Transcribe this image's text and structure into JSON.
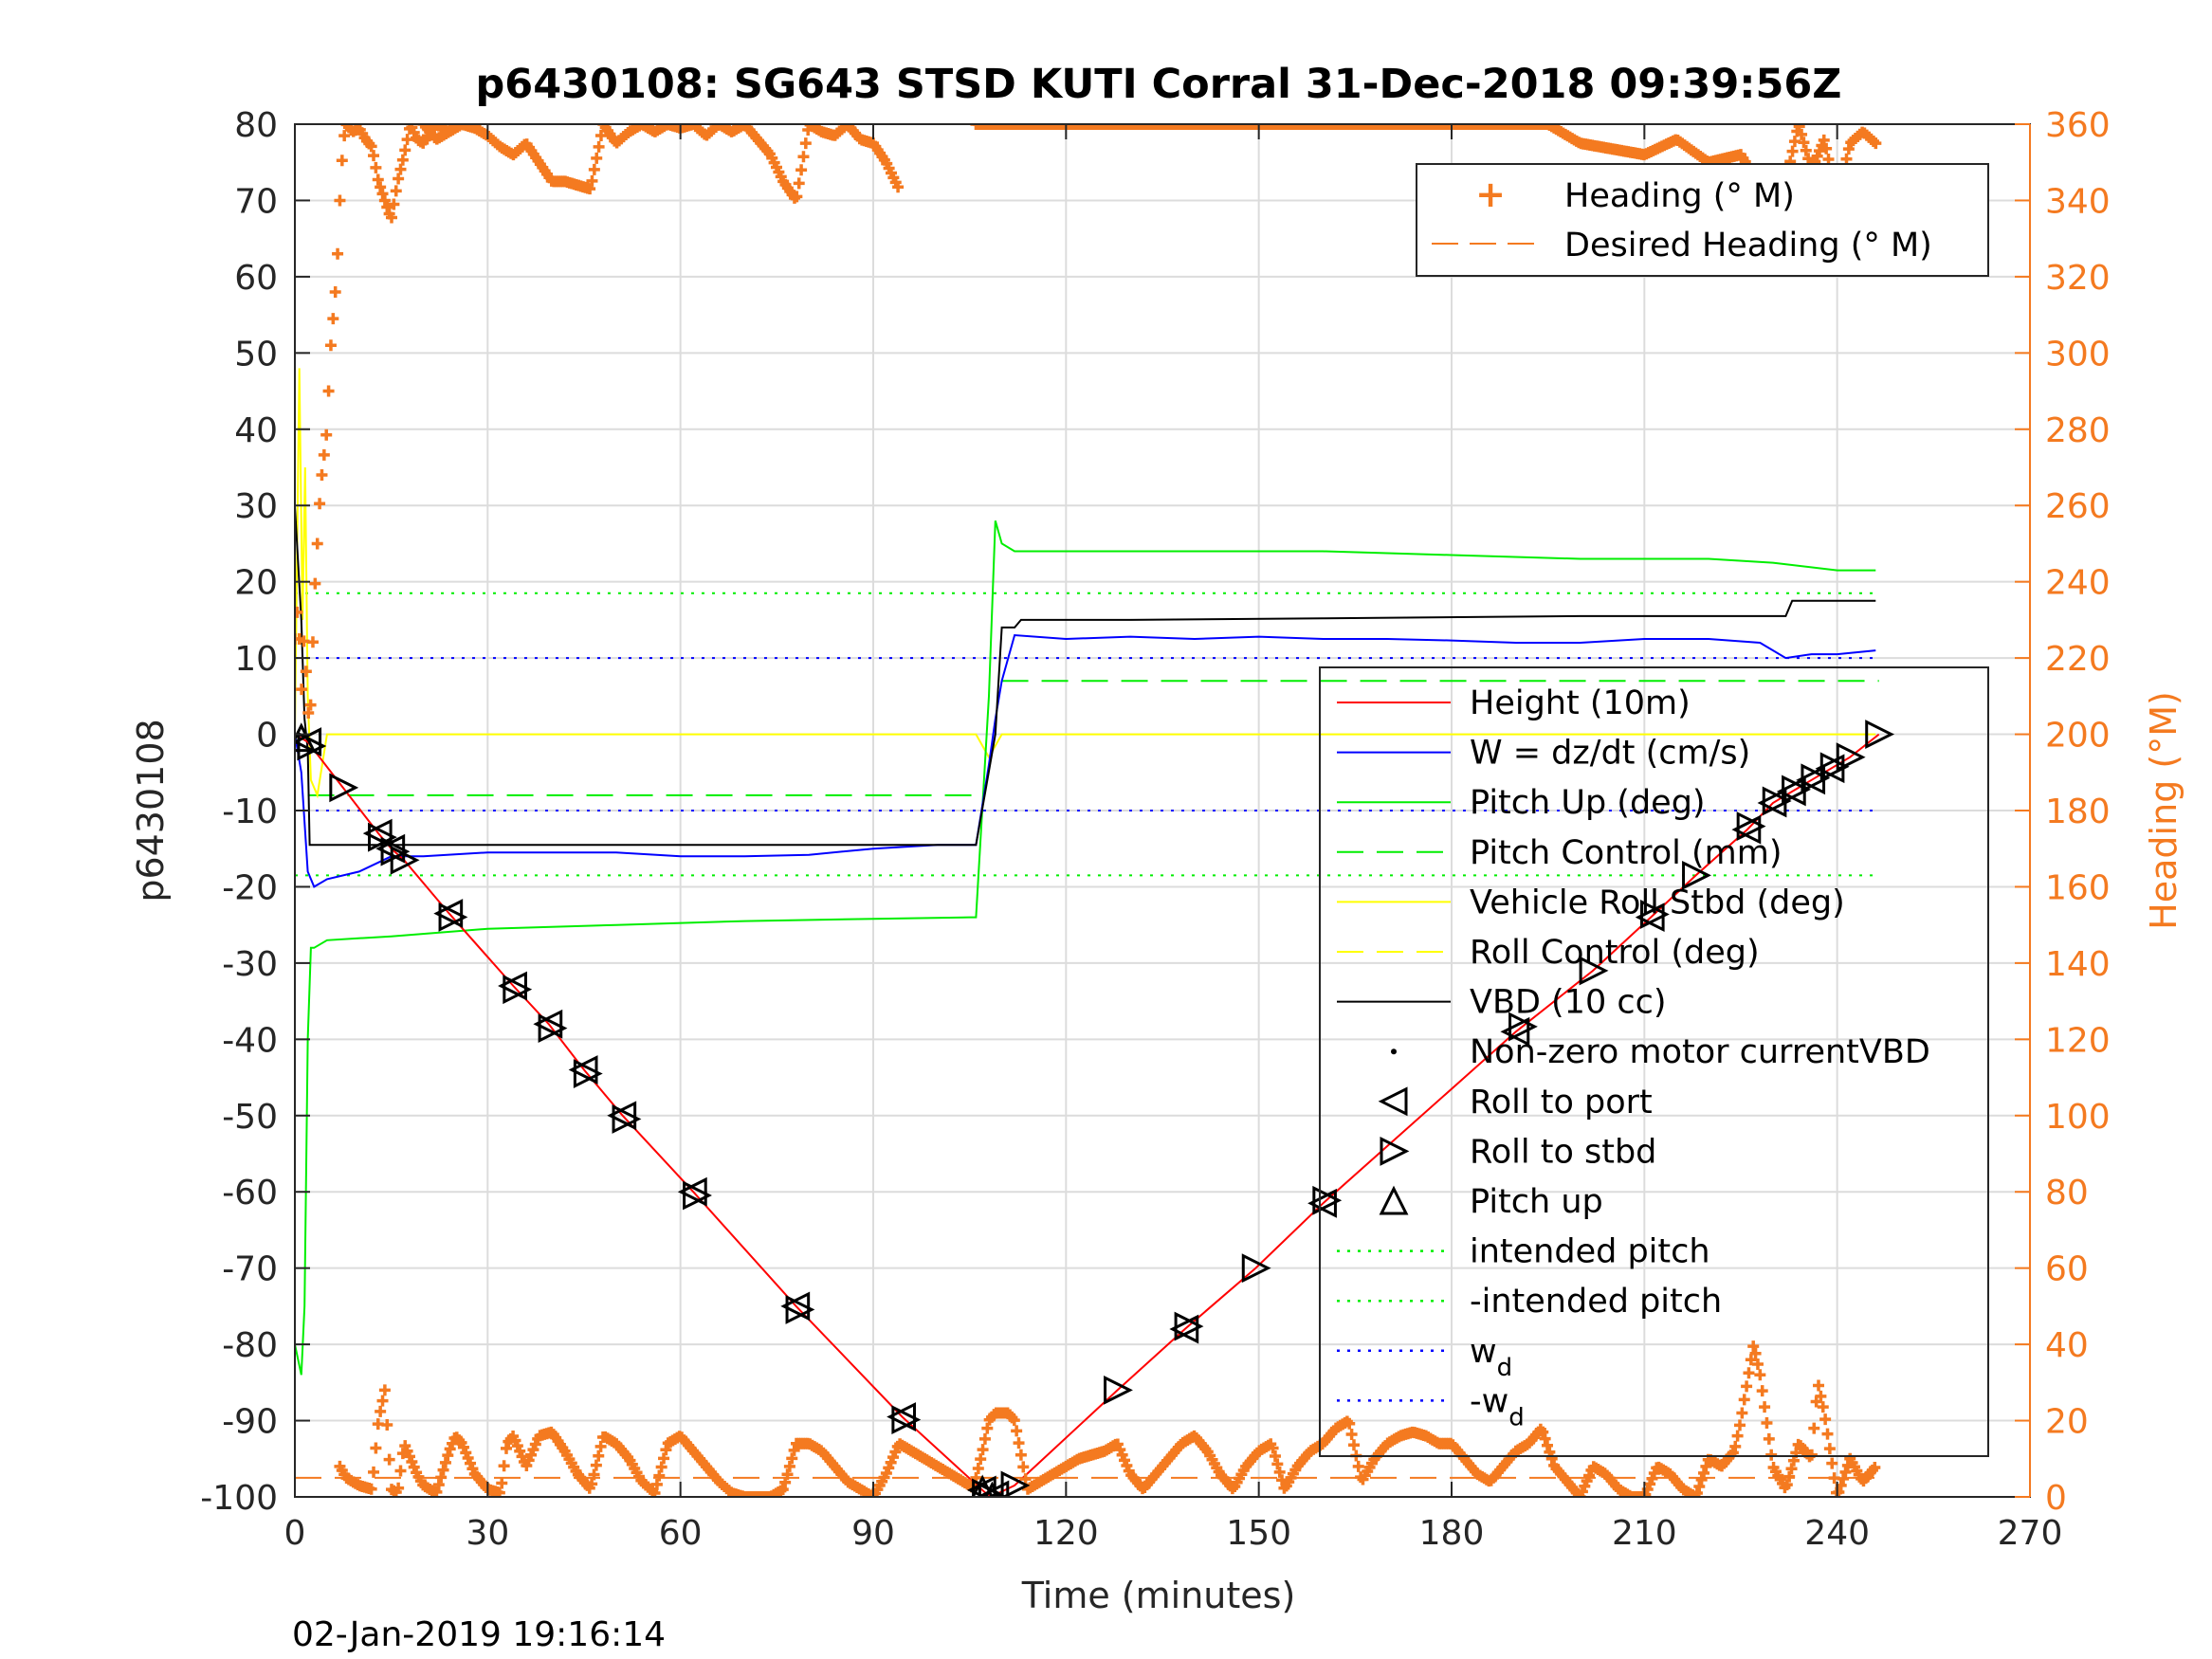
{
  "title": "p6430108: SG643 STSD KUTI Corral 31-Dec-2018 09:39:56Z",
  "footer_timestamp": "02-Jan-2019 19:16:14",
  "colors": {
    "heading": "#f47a20",
    "height": "#ff0000",
    "w": "#0000ff",
    "pitch": "#00ee00",
    "roll": "#ffff00",
    "vbd": "#000000",
    "axis": "#262626",
    "grid": "#dcdcdc"
  },
  "chart_data": {
    "type": "line",
    "title": "p6430108: SG643 STSD KUTI Corral 31-Dec-2018 09:39:56Z",
    "xlabel": "Time (minutes)",
    "ylabel": "p6430108",
    "y2label": "Heading (°M)",
    "xlim": [
      0,
      270
    ],
    "ylim": [
      -100,
      80
    ],
    "y2lim": [
      0,
      360
    ],
    "x_ticks": [
      "0",
      "30",
      "60",
      "90",
      "120",
      "150",
      "180",
      "210",
      "240",
      "270"
    ],
    "y_ticks": [
      "80",
      "70",
      "60",
      "50",
      "40",
      "30",
      "20",
      "10",
      "0",
      "-10",
      "-20",
      "-30",
      "-40",
      "-50",
      "-60",
      "-70",
      "-80",
      "-90",
      "-100"
    ],
    "y2_ticks": [
      "360",
      "340",
      "320",
      "300",
      "280",
      "260",
      "240",
      "220",
      "200",
      "180",
      "160",
      "140",
      "120",
      "100",
      "80",
      "60",
      "40",
      "20",
      "0"
    ],
    "grid": true,
    "reference_lines": {
      "intended_pitch": 18.5,
      "neg_intended_pitch": -18.5,
      "wd": 10,
      "neg_wd": -10,
      "pitch_control_dive": -8,
      "pitch_control_climb": 7,
      "desired_heading": 5
    },
    "series": [
      {
        "name": "Height (10m)",
        "x": [
          0,
          2,
          7.5,
          13,
          15,
          17,
          24,
          34,
          39.5,
          45,
          51,
          62,
          78,
          94.5,
          107.5,
          108.5,
          109.5,
          112,
          128,
          138.5,
          149.5,
          160,
          190,
          202,
          211,
          218,
          226,
          230,
          233,
          236,
          239,
          242,
          246.5
        ],
        "y": [
          0,
          -1,
          -7,
          -13,
          -15,
          -16.5,
          -23.5,
          -33,
          -38,
          -44,
          -50,
          -60,
          -75,
          -89.5,
          -99.5,
          -100,
          -99.5,
          -98.5,
          -86,
          -78,
          -70,
          -61.5,
          -39,
          -31,
          -24,
          -18.5,
          -12.5,
          -9,
          -7.5,
          -6,
          -4.5,
          -3,
          0
        ]
      },
      {
        "name": "W = dz/dt (cm/s)",
        "x": [
          0,
          1,
          2,
          3,
          5,
          10,
          15,
          20,
          30,
          40,
          50,
          60,
          70,
          80,
          90,
          100,
          106,
          108,
          109,
          110,
          112,
          120,
          130,
          140,
          150,
          160,
          170,
          180,
          190,
          200,
          210,
          220,
          228,
          232,
          236,
          240,
          246
        ],
        "y": [
          0,
          -5,
          -18,
          -20,
          -19,
          -18,
          -16,
          -16,
          -15.5,
          -15.5,
          -15.5,
          -16,
          -16,
          -15.8,
          -15,
          -14.5,
          -14.5,
          -4,
          2,
          7,
          13,
          12.5,
          12.8,
          12.5,
          12.8,
          12.5,
          12.5,
          12.3,
          12,
          12,
          12.5,
          12.5,
          12,
          10,
          10.5,
          10.5,
          11
        ]
      },
      {
        "name": "Pitch Up (deg)",
        "x": [
          0,
          1,
          1.5,
          2,
          2.5,
          3,
          5,
          15,
          30,
          50,
          70,
          90,
          105,
          106,
          108,
          109,
          110,
          112,
          130,
          150,
          160,
          180,
          200,
          220,
          230,
          240,
          246
        ],
        "y": [
          -80,
          -84,
          -75,
          -40,
          -28,
          -28,
          -27,
          -26.5,
          -25.5,
          -25,
          -24.5,
          -24.2,
          -24,
          -24,
          5,
          28,
          25,
          24,
          24,
          24,
          24,
          23.5,
          23,
          23,
          22.5,
          21.5,
          21.5
        ]
      },
      {
        "name": "Vehicle Roll Stbd (deg)",
        "x": [
          0,
          0.7,
          1.2,
          1.6,
          2,
          2.5,
          3.5,
          5,
          10,
          20,
          30,
          40,
          50,
          60,
          70,
          80,
          90,
          100,
          106,
          108,
          110,
          130,
          150,
          170,
          190,
          210,
          230,
          246
        ],
        "y": [
          0,
          48,
          15,
          35,
          5,
          -6,
          -8,
          0,
          0,
          0,
          0,
          0,
          0,
          0,
          0,
          0,
          0,
          0,
          0,
          -3,
          0,
          0,
          0,
          0,
          0,
          0,
          0,
          0
        ]
      },
      {
        "name": "VBD (10 cc)",
        "x": [
          0,
          1,
          1.5,
          2,
          2.3,
          3,
          40,
          80,
          106,
          109,
          110,
          111,
          112,
          113,
          130,
          160,
          200,
          232,
          233,
          246
        ],
        "y": [
          30,
          15,
          2,
          -2,
          -14.5,
          -14.5,
          -14.5,
          -14.5,
          -14.5,
          0,
          14,
          14,
          14,
          15,
          15,
          15.2,
          15.5,
          15.5,
          17.5,
          17.5
        ]
      }
    ],
    "markers": {
      "roll_to_port": [
        2,
        13,
        15,
        24,
        34,
        39.5,
        45,
        51,
        62,
        78,
        94.5,
        107,
        109,
        138.5,
        160,
        190,
        211,
        226,
        230,
        233,
        236,
        239
      ],
      "roll_to_stbd": [
        2.5,
        7.5,
        13.5,
        15.5,
        17,
        24.5,
        34.5,
        40,
        45.5,
        51.5,
        62.5,
        78.5,
        95,
        107.5,
        108.5,
        112,
        128,
        139,
        149.5,
        160.5,
        191,
        202,
        211.5,
        218,
        226.5,
        230.5,
        233.5,
        236.5,
        239.5,
        242,
        246.5
      ],
      "pitch_up": [
        1,
        107,
        108.5
      ]
    },
    "heading_segments": [
      {
        "x": [
          0,
          0.5,
          1,
          1.5,
          2,
          2.5,
          3,
          4,
          5,
          5.5,
          6,
          6.5,
          7,
          7.5,
          8,
          9,
          10,
          11,
          12,
          13,
          14,
          15,
          16,
          17,
          18,
          19,
          20,
          21,
          22,
          23,
          24,
          25
        ],
        "y": [
          225,
          235,
          210,
          228,
          205,
          208,
          235,
          265,
          280,
          300,
          310,
          320,
          340,
          355,
          360,
          358,
          359,
          356,
          354,
          345,
          340,
          335,
          345,
          352,
          360,
          356,
          355,
          358,
          360,
          359,
          358,
          360
        ]
      },
      {
        "x": [
          20,
          22,
          24,
          26,
          28,
          30,
          32,
          34,
          36,
          38,
          40,
          42,
          44,
          46,
          48,
          50,
          52,
          54,
          56,
          58,
          60,
          62,
          64,
          66,
          68,
          70,
          72,
          74,
          76,
          78,
          80,
          82,
          84,
          86,
          88,
          90,
          92,
          94
        ],
        "y": [
          360,
          356,
          358,
          360,
          359,
          357,
          354,
          352,
          355,
          350,
          345,
          345,
          344,
          343,
          360,
          355,
          358,
          360,
          358,
          360,
          359,
          360,
          357,
          360,
          358,
          360,
          356,
          352,
          345,
          340,
          360,
          358,
          357,
          360,
          356,
          355,
          350,
          343
        ]
      },
      {
        "x": [
          106,
          107,
          108,
          110,
          115,
          125,
          140,
          160,
          175,
          195,
          200,
          210,
          215,
          220,
          225,
          228,
          230,
          232,
          234,
          236,
          238,
          240,
          242,
          244,
          246
        ],
        "y": [
          360,
          360,
          360,
          360,
          360,
          360,
          360,
          360,
          360,
          360,
          355,
          352,
          356,
          350,
          352,
          344,
          330,
          345,
          360,
          348,
          356,
          340,
          355,
          358,
          355
        ]
      },
      {
        "x": [
          7,
          8,
          10,
          12,
          13,
          14,
          15,
          16,
          17,
          18,
          19,
          20,
          22,
          24,
          25,
          26,
          27,
          28,
          30,
          32,
          33,
          34,
          35,
          36,
          38,
          40,
          42,
          44,
          46,
          48,
          50,
          52,
          54,
          56,
          58,
          60,
          62,
          64,
          66,
          68,
          70,
          72,
          74,
          76,
          78,
          80,
          82,
          84,
          86,
          88,
          90,
          92,
          94,
          96,
          98,
          100,
          102,
          104,
          106
        ],
        "y": [
          8,
          5,
          3,
          2,
          20,
          28,
          2,
          1,
          14,
          10,
          6,
          3,
          1,
          12,
          16,
          14,
          10,
          6,
          2,
          1,
          14,
          16,
          12,
          8,
          16,
          17,
          12,
          6,
          2,
          16,
          14,
          10,
          4,
          1,
          14,
          16,
          12,
          8,
          4,
          1,
          0,
          0,
          0,
          2,
          14,
          14,
          12,
          8,
          4,
          2,
          0,
          6,
          14,
          12,
          10,
          8,
          6,
          4,
          2
        ]
      },
      {
        "x": [
          106,
          107,
          108,
          109,
          110,
          111,
          112,
          114,
          116,
          118,
          120,
          122,
          124,
          126,
          128,
          130,
          132,
          134,
          136,
          138,
          140,
          142,
          144,
          146,
          148,
          150,
          152,
          154,
          156,
          158,
          160,
          162,
          164,
          166,
          168,
          170,
          172,
          174,
          176,
          178,
          180,
          182,
          184,
          186,
          188,
          190,
          192,
          194,
          196,
          198,
          200
        ],
        "y": [
          5,
          12,
          20,
          22,
          22,
          22,
          20,
          2,
          4,
          6,
          8,
          10,
          11,
          12,
          14,
          6,
          2,
          6,
          10,
          14,
          16,
          12,
          6,
          2,
          8,
          12,
          14,
          2,
          8,
          12,
          14,
          18,
          20,
          4,
          10,
          14,
          16,
          17,
          16,
          14,
          14,
          10,
          6,
          4,
          8,
          12,
          14,
          18,
          8,
          4,
          0
        ]
      },
      {
        "x": [
          200,
          202,
          204,
          206,
          208,
          210,
          212,
          214,
          216,
          218,
          220,
          222,
          224,
          225,
          226,
          227,
          228,
          229,
          230,
          232,
          234,
          236,
          237,
          238,
          240,
          242,
          244,
          246
        ],
        "y": [
          0,
          8,
          6,
          2,
          0,
          0,
          8,
          6,
          2,
          0,
          10,
          8,
          12,
          20,
          30,
          40,
          32,
          20,
          8,
          2,
          14,
          10,
          30,
          22,
          0,
          10,
          4,
          8
        ]
      }
    ]
  },
  "legend_top": {
    "items": [
      {
        "label": "Heading (° M)"
      },
      {
        "label": "Desired Heading (° M)"
      }
    ]
  },
  "legend_main": {
    "items": [
      {
        "label": "Height (10m)"
      },
      {
        "label": "W = dz/dt (cm/s)"
      },
      {
        "label": "Pitch Up (deg)"
      },
      {
        "label": "Pitch Control (mm)"
      },
      {
        "label": "Vehicle Roll Stbd (deg)"
      },
      {
        "label": "Roll Control (deg)"
      },
      {
        "label": "VBD (10 cc)"
      },
      {
        "label": "Non-zero motor currentVBD"
      },
      {
        "label": "Roll to port"
      },
      {
        "label": "Roll to stbd"
      },
      {
        "label": "Pitch up"
      },
      {
        "label": "intended pitch"
      },
      {
        "label": "-intended pitch"
      },
      {
        "label": "w",
        "sub": "d"
      },
      {
        "label": "-w",
        "sub": "d"
      }
    ]
  }
}
